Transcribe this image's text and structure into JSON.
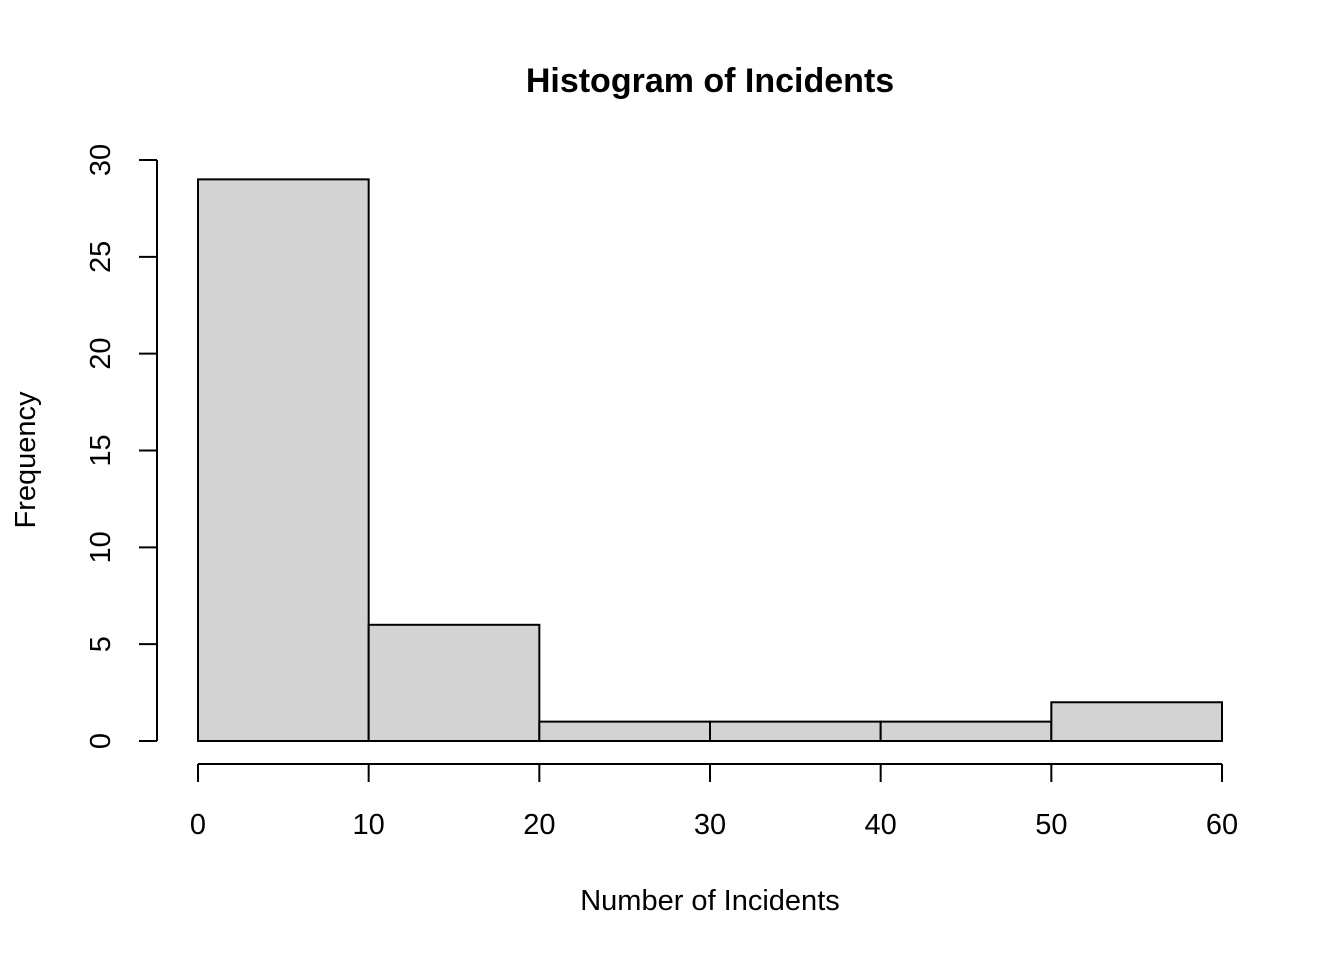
{
  "chart_data": {
    "type": "bar",
    "title": "Histogram of Incidents",
    "xlabel": "Number of Incidents",
    "ylabel": "Frequency",
    "bins": [
      {
        "start": 0,
        "end": 10,
        "count": 29
      },
      {
        "start": 10,
        "end": 20,
        "count": 6
      },
      {
        "start": 20,
        "end": 30,
        "count": 1
      },
      {
        "start": 30,
        "end": 40,
        "count": 1
      },
      {
        "start": 40,
        "end": 50,
        "count": 1
      },
      {
        "start": 50,
        "end": 60,
        "count": 2
      }
    ],
    "xlim": [
      0,
      60
    ],
    "ylim": [
      0,
      30
    ],
    "x_ticks": [
      0,
      10,
      20,
      30,
      40,
      50,
      60
    ],
    "y_ticks": [
      0,
      5,
      10,
      15,
      20,
      25,
      30
    ],
    "bar_color": "#d3d3d3",
    "grid": false
  }
}
